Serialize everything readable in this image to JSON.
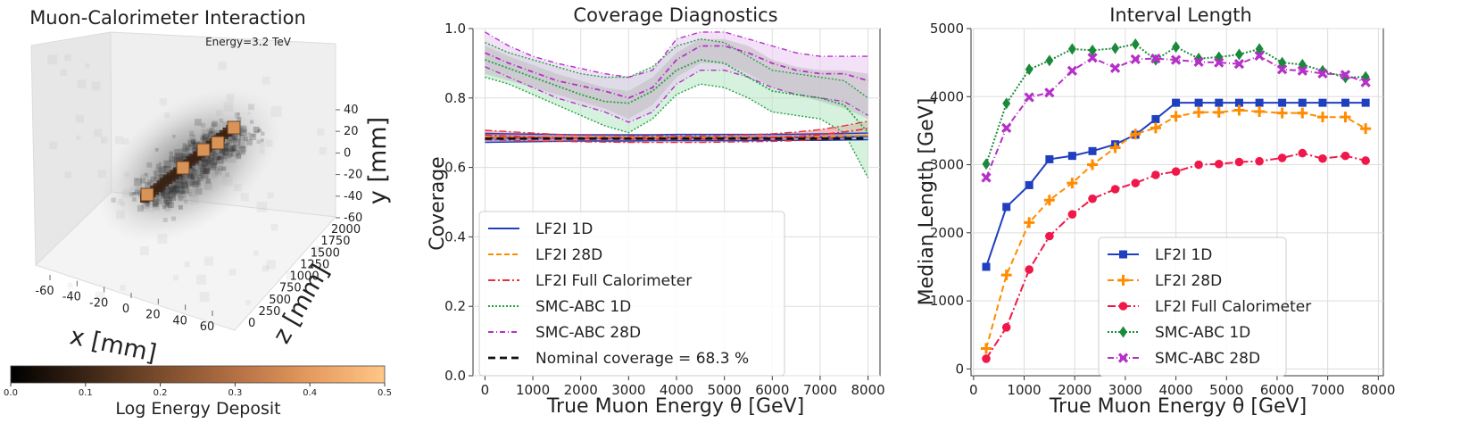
{
  "chart_data": [
    {
      "type": "scatter",
      "title": "Muon-Calorimeter Interaction",
      "annotation": "Energy=3.2 TeV",
      "xlabel": "x [mm]",
      "ylabel": "y [mm]",
      "zlabel": "z [mm]",
      "x_ticks": [
        "-60",
        "-40",
        "-20",
        "0",
        "20",
        "40",
        "60"
      ],
      "y_ticks": [
        "40",
        "20",
        "0",
        "-20",
        "-40",
        "-60"
      ],
      "z_ticks": [
        "0",
        "250",
        "500",
        "750",
        "1000",
        "1250",
        "1500",
        "1750",
        "2000"
      ],
      "colorbar": {
        "label": "Log Energy Deposit",
        "ticks": [
          "0.0",
          "0.1",
          "0.2",
          "0.3",
          "0.4",
          "0.5"
        ],
        "range": [
          0,
          0.5
        ],
        "colors": [
          "#000000",
          "#3a2415",
          "#7a4c2c",
          "#b37044",
          "#e59a5e",
          "#ffc787"
        ]
      }
    },
    {
      "type": "line",
      "title": "Coverage Diagnostics",
      "xlabel": "True Muon Energy θ [GeV]",
      "ylabel": "Coverage",
      "xlim": [
        -250,
        8250
      ],
      "ylim": [
        0,
        1.0
      ],
      "xticks": [
        0,
        1000,
        2000,
        3000,
        4000,
        5000,
        6000,
        7000,
        8000
      ],
      "yticks": [
        0.0,
        0.2,
        0.4,
        0.6,
        0.8,
        1.0
      ],
      "y_tick_labels": [
        "0.0",
        "0.2",
        "0.4",
        "0.6",
        "0.8",
        "1.0"
      ],
      "grid": true,
      "legend_placement": "bottom-left",
      "x": [
        0,
        500,
        1000,
        1500,
        2000,
        2500,
        3000,
        3500,
        4000,
        4500,
        5000,
        5500,
        6000,
        6500,
        7000,
        7500,
        8000
      ],
      "series": [
        {
          "name": "LF2I 1D",
          "color": "#1f3fbf",
          "dash": "",
          "band_color": "#5a6cd6",
          "values": [
            0.685,
            0.685,
            0.685,
            0.685,
            0.685,
            0.685,
            0.685,
            0.685,
            0.686,
            0.686,
            0.686,
            0.686,
            0.686,
            0.686,
            0.687,
            0.688,
            0.689
          ],
          "lower": [
            0.672,
            0.673,
            0.674,
            0.675,
            0.676,
            0.676,
            0.676,
            0.677,
            0.677,
            0.677,
            0.677,
            0.677,
            0.678,
            0.678,
            0.678,
            0.679,
            0.68
          ],
          "upper": [
            0.698,
            0.697,
            0.696,
            0.695,
            0.694,
            0.694,
            0.694,
            0.694,
            0.695,
            0.695,
            0.695,
            0.695,
            0.695,
            0.696,
            0.697,
            0.698,
            0.699
          ]
        },
        {
          "name": "LF2I 28D",
          "color": "#ff8c00",
          "dash": "6,3",
          "values": [
            0.687,
            0.687,
            0.686,
            0.686,
            0.686,
            0.686,
            0.686,
            0.686,
            0.686,
            0.686,
            0.686,
            0.686,
            0.686,
            0.687,
            0.688,
            0.69,
            0.692
          ]
        },
        {
          "name": "LF2I Full Calorimeter",
          "color": "#e8303a",
          "dash": "8,3,2,3",
          "band_color": "#f08080",
          "values": [
            0.693,
            0.69,
            0.687,
            0.685,
            0.684,
            0.683,
            0.682,
            0.682,
            0.682,
            0.682,
            0.683,
            0.684,
            0.686,
            0.689,
            0.694,
            0.702,
            0.712
          ],
          "lower": [
            0.68,
            0.678,
            0.676,
            0.675,
            0.674,
            0.673,
            0.672,
            0.672,
            0.672,
            0.672,
            0.673,
            0.674,
            0.675,
            0.677,
            0.68,
            0.685,
            0.69
          ],
          "upper": [
            0.707,
            0.703,
            0.699,
            0.695,
            0.693,
            0.692,
            0.691,
            0.691,
            0.691,
            0.691,
            0.692,
            0.694,
            0.697,
            0.702,
            0.709,
            0.72,
            0.733
          ]
        },
        {
          "name": "SMC-ABC 1D",
          "color": "#21a341",
          "dash": "2,2",
          "band_color": "#b5e6c2",
          "values": [
            0.91,
            0.885,
            0.86,
            0.835,
            0.81,
            0.79,
            0.785,
            0.82,
            0.88,
            0.91,
            0.9,
            0.86,
            0.82,
            0.81,
            0.8,
            0.78,
            0.7
          ],
          "lower": [
            0.86,
            0.84,
            0.81,
            0.78,
            0.75,
            0.72,
            0.7,
            0.74,
            0.81,
            0.84,
            0.83,
            0.8,
            0.76,
            0.75,
            0.74,
            0.7,
            0.57
          ],
          "upper": [
            0.96,
            0.93,
            0.91,
            0.89,
            0.87,
            0.86,
            0.86,
            0.89,
            0.95,
            0.97,
            0.96,
            0.92,
            0.88,
            0.87,
            0.86,
            0.85,
            0.8
          ]
        },
        {
          "name": "SMC-ABC 28D",
          "color": "#b530c8",
          "dash": "6,3,1,3",
          "band_color": "#e9c9f2",
          "values": [
            0.93,
            0.9,
            0.875,
            0.85,
            0.835,
            0.82,
            0.8,
            0.83,
            0.91,
            0.95,
            0.95,
            0.93,
            0.9,
            0.88,
            0.87,
            0.87,
            0.85
          ],
          "lower": [
            0.89,
            0.86,
            0.83,
            0.8,
            0.78,
            0.76,
            0.73,
            0.76,
            0.84,
            0.88,
            0.88,
            0.86,
            0.83,
            0.81,
            0.8,
            0.79,
            0.75
          ],
          "upper": [
            0.99,
            0.95,
            0.92,
            0.9,
            0.885,
            0.87,
            0.86,
            0.88,
            0.97,
            0.99,
            0.99,
            0.97,
            0.95,
            0.93,
            0.92,
            0.92,
            0.92
          ]
        },
        {
          "name": "Nominal coverage = 68.3 %",
          "color": "#111111",
          "dash": "8,5",
          "values": [
            0.683,
            0.683,
            0.683,
            0.683,
            0.683,
            0.683,
            0.683,
            0.683,
            0.683,
            0.683,
            0.683,
            0.683,
            0.683,
            0.683,
            0.683,
            0.683,
            0.683
          ]
        }
      ],
      "grey_band": {
        "color": "#bdbdbd",
        "lower": [
          0.87,
          0.85,
          0.83,
          0.81,
          0.79,
          0.77,
          0.74,
          0.78,
          0.86,
          0.9,
          0.9,
          0.87,
          0.83,
          0.81,
          0.79,
          0.77,
          0.74
        ],
        "upper": [
          0.95,
          0.92,
          0.895,
          0.87,
          0.85,
          0.83,
          0.82,
          0.86,
          0.93,
          0.97,
          0.97,
          0.95,
          0.91,
          0.89,
          0.88,
          0.88,
          0.87
        ]
      }
    },
    {
      "type": "line",
      "title": "Interval Length",
      "xlabel": "True Muon Energy θ [GeV]",
      "ylabel": "Median Length [GeV]",
      "xlim": [
        -50,
        8100
      ],
      "ylim": [
        -100,
        5000
      ],
      "xticks": [
        0,
        1000,
        2000,
        3000,
        4000,
        5000,
        6000,
        7000,
        8000
      ],
      "yticks": [
        0,
        1000,
        2000,
        3000,
        4000,
        5000
      ],
      "grid": true,
      "legend_placement": "bottom-right",
      "x": [
        250,
        650,
        1100,
        1500,
        1950,
        2350,
        2800,
        3200,
        3600,
        4000,
        4450,
        4850,
        5250,
        5650,
        6100,
        6500,
        6900,
        7350,
        7750
      ],
      "series": [
        {
          "name": "LF2I 1D",
          "color": "#1f3fbf",
          "dash": "",
          "marker": "square",
          "values": [
            1500,
            2380,
            2700,
            3080,
            3130,
            3200,
            3300,
            3440,
            3670,
            3910,
            3910,
            3910,
            3910,
            3910,
            3910,
            3910,
            3910,
            3910,
            3910
          ]
        },
        {
          "name": "LF2I 28D",
          "color": "#ff8c00",
          "dash": "7,4",
          "marker": "plus",
          "values": [
            300,
            1380,
            2150,
            2480,
            2730,
            3000,
            3250,
            3450,
            3540,
            3710,
            3770,
            3770,
            3800,
            3780,
            3760,
            3760,
            3700,
            3700,
            3530
          ]
        },
        {
          "name": "LF2I Full Calorimeter",
          "color": "#f0184a",
          "dash": "9,3,2,3",
          "marker": "circle",
          "values": [
            150,
            610,
            1460,
            1950,
            2270,
            2500,
            2640,
            2730,
            2850,
            2900,
            3000,
            3010,
            3040,
            3050,
            3100,
            3170,
            3090,
            3130,
            3060
          ]
        },
        {
          "name": "SMC-ABC 1D",
          "color": "#1a8a3a",
          "dash": "2,2",
          "marker": "diamond",
          "values": [
            3010,
            3900,
            4400,
            4530,
            4700,
            4680,
            4710,
            4770,
            4540,
            4730,
            4560,
            4580,
            4620,
            4700,
            4500,
            4470,
            4380,
            4280,
            4290
          ]
        },
        {
          "name": "SMC-ABC 28D",
          "color": "#b530c8",
          "dash": "7,3,1,3",
          "marker": "x",
          "values": [
            2810,
            3540,
            3990,
            4060,
            4380,
            4570,
            4420,
            4550,
            4560,
            4540,
            4510,
            4500,
            4480,
            4600,
            4400,
            4380,
            4340,
            4320,
            4210
          ]
        }
      ]
    }
  ]
}
